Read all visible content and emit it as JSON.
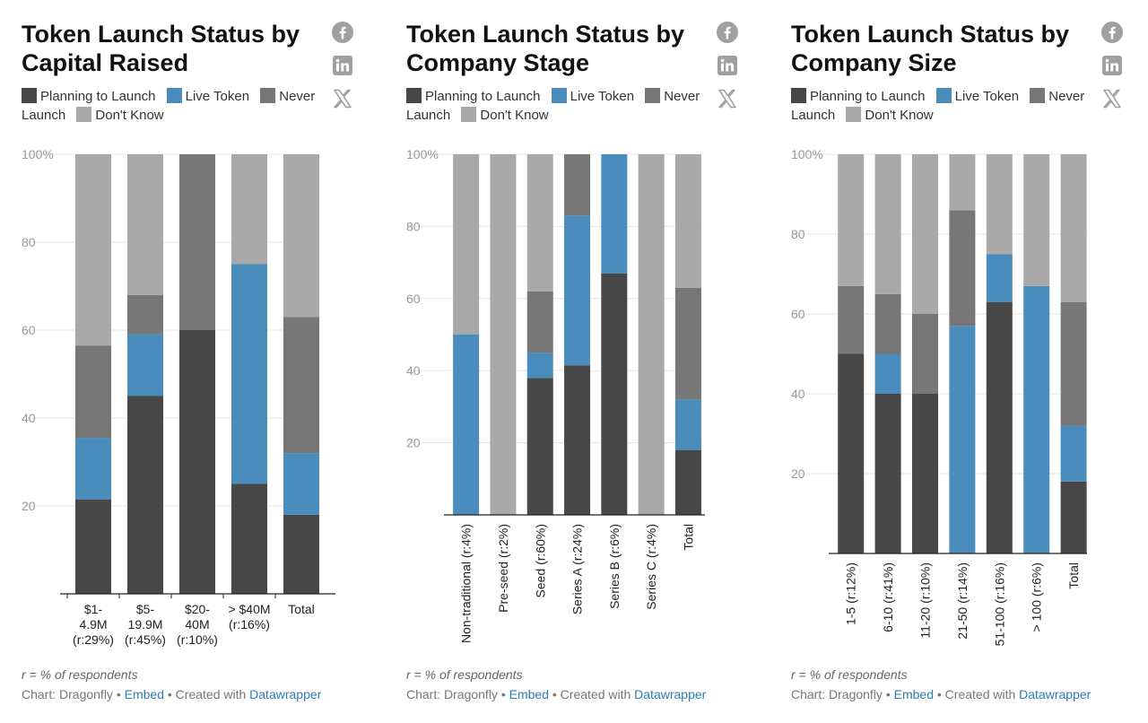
{
  "legend": {
    "planning": "Planning to Launch",
    "live": "Live Token",
    "never_a": "Never",
    "never_b": "Launch",
    "dont_know": "Don't Know"
  },
  "colors": {
    "planning": "#474747",
    "live": "#4a8cbb",
    "never": "#777777",
    "dont_know": "#a9a9a9",
    "link": "#2c7cb5"
  },
  "icons": [
    "facebook-icon",
    "linkedin-icon",
    "x-icon"
  ],
  "footer": {
    "note": "r = % of respondents",
    "chart_by": "Chart: Dragonfly",
    "sep": " • ",
    "embed": "Embed",
    "created": "Created with",
    "tool": "Datawrapper"
  },
  "charts": [
    {
      "title_line1": "Token Launch Status by",
      "title_line2": "Capital Raised"
    },
    {
      "title_line1": "Token Launch Status by",
      "title_line2": "Company Stage"
    },
    {
      "title_line1": "Token Launch Status by",
      "title_line2": "Company Size"
    }
  ],
  "chart_data": [
    {
      "type": "bar",
      "stacked": true,
      "title": "Token Launch Status by Capital Raised",
      "y_ticks": [
        "20",
        "40",
        "60",
        "80",
        "100%"
      ],
      "ylim": [
        0,
        100
      ],
      "categories": [
        "$1-4.9M (r:29%)",
        "$5-19.9M (r:45%)",
        "$20-40M (r:10%)",
        "> $40M (r:16%)",
        "Total"
      ],
      "category_lines": [
        [
          "$1-",
          "4.9M",
          "(r:29%)"
        ],
        [
          "$5-",
          "19.9M",
          "(r:45%)"
        ],
        [
          "$20-",
          "40M",
          "(r:10%)"
        ],
        [
          "> $40M",
          "(r:16%)"
        ],
        [
          "Total"
        ]
      ],
      "series": [
        {
          "name": "Planning to Launch",
          "values": [
            21.5,
            45,
            60,
            25,
            18
          ]
        },
        {
          "name": "Live Token",
          "values": [
            14,
            14,
            0,
            50,
            14
          ]
        },
        {
          "name": "Never Launch",
          "values": [
            21,
            9,
            40,
            0,
            31
          ]
        },
        {
          "name": "Don't Know",
          "values": [
            43.5,
            32,
            0,
            25,
            37
          ]
        }
      ]
    },
    {
      "type": "bar",
      "stacked": true,
      "title": "Token Launch Status by Company Stage",
      "y_ticks": [
        "20",
        "40",
        "60",
        "80",
        "100%"
      ],
      "ylim": [
        0,
        100
      ],
      "categories": [
        "Non-traditional (r:4%)",
        "Pre-seed (r:2%)",
        "Seed (r:60%)",
        "Series A (r:24%)",
        "Series B (r:6%)",
        "Series C (r:4%)",
        "Total"
      ],
      "series": [
        {
          "name": "Planning to Launch",
          "values": [
            0,
            0,
            38,
            41.5,
            67,
            0,
            18
          ]
        },
        {
          "name": "Live Token",
          "values": [
            50,
            0,
            7,
            41.5,
            33,
            0,
            14
          ]
        },
        {
          "name": "Never Launch",
          "values": [
            0,
            0,
            17,
            17,
            0,
            0,
            31
          ]
        },
        {
          "name": "Don't Know",
          "values": [
            50,
            100,
            38,
            0,
            0,
            100,
            37
          ]
        }
      ]
    },
    {
      "type": "bar",
      "stacked": true,
      "title": "Token Launch Status by Company Size",
      "y_ticks": [
        "20",
        "40",
        "60",
        "80",
        "100%"
      ],
      "ylim": [
        0,
        100
      ],
      "categories": [
        "1-5 (r:12%)",
        "6-10 (r:41%)",
        "11-20 (r:10%)",
        "21-50 (r:14%)",
        "51-100 (r:16%)",
        "> 100 (r:6%)",
        "Total"
      ],
      "series": [
        {
          "name": "Planning to Launch",
          "values": [
            50,
            40,
            40,
            0,
            63,
            0,
            18
          ]
        },
        {
          "name": "Live Token",
          "values": [
            0,
            10,
            0,
            57,
            12,
            67,
            14
          ]
        },
        {
          "name": "Never Launch",
          "values": [
            17,
            15,
            20,
            29,
            0,
            0,
            31
          ]
        },
        {
          "name": "Don't Know",
          "values": [
            33,
            35,
            40,
            14,
            25,
            33,
            37
          ]
        }
      ]
    }
  ]
}
